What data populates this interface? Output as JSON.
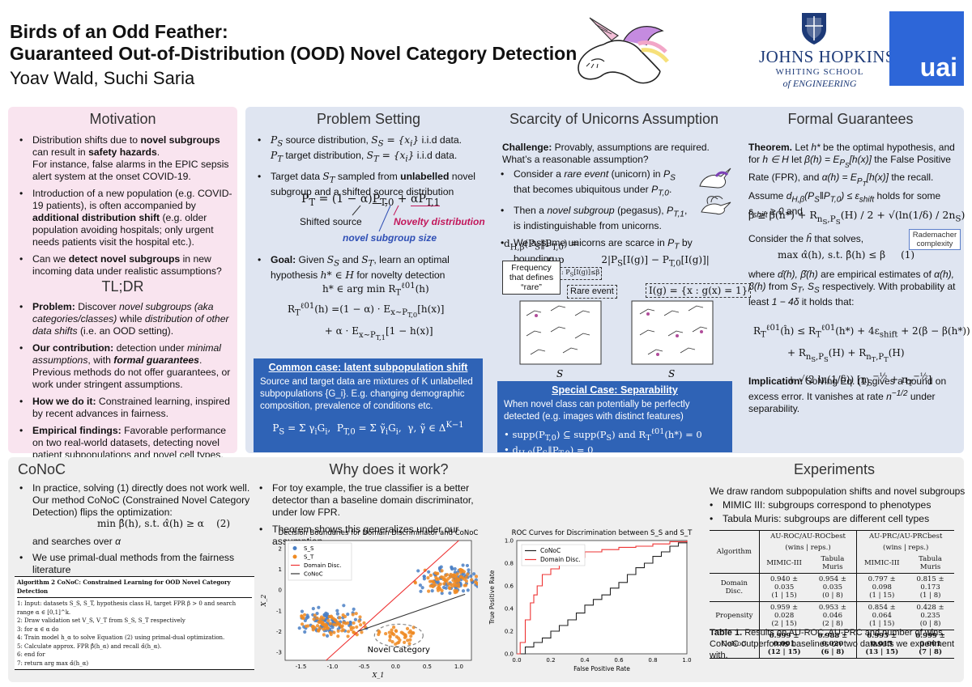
{
  "header": {
    "title_line1": "Birds of an Odd Feather:",
    "title_line2": "Guaranteed Out-of-Distribution (OOD) Novel Category Detection",
    "authors": "Yoav Wald, Suchi Saria",
    "jhu_name": "JOHNS HOPKINS",
    "jhu_school1": "WHITING SCHOOL",
    "jhu_school2": "of ENGINEERING",
    "uai": "uai"
  },
  "motivation": {
    "title": "Motivation",
    "b1a": "Distribution shifts due to ",
    "b1b": "novel subgroups",
    "b1c": " can result in ",
    "b1d": "safety hazards",
    "b1e": ".",
    "b1f": "For instance, false alarms in the EPIC sepsis alert system at the onset COVID-19.",
    "b2a": "Introduction of a new population (e.g. COVID-19 patients), is often accompanied by ",
    "b2b": "additional distribution shift",
    "b2c": " (e.g. older population avoiding hospitals; only urgent needs patients visit the hospital etc.).",
    "b3a": "Can we ",
    "b3b": "detect novel subgroups",
    "b3c": " in new incoming data under realistic assumptions?"
  },
  "tldr": {
    "title": "TL;DR",
    "p_h": "Problem:",
    "p_t1": " Discover ",
    "p_t2": "novel subgroups (aka categories/classes)",
    "p_t3": " while ",
    "p_t4": "distribution of other data shifts",
    "p_t5": " (i.e. an OOD setting).",
    "c_h": "Our contribution:",
    "c_t1": " detection under ",
    "c_t2": "minimal assumptions",
    "c_t3": ", with ",
    "c_t4": "formal guarantees",
    "c_t5": ". Previous methods do not offer guarantees, or work under stringent assumptions.",
    "h_h": "How we do it:",
    "h_t": " Constrained learning, inspired by recent advances in fairness.",
    "e_h": "Empirical findings:",
    "e_t": " Favorable performance on two real-world datasets, detecting novel patient subpopulations and novel cell types."
  },
  "problem": {
    "title": "Problem Setting",
    "b1a": "source distribution, ",
    "b1b": " i.i.d data.",
    "b1c": "target distribution, ",
    "b1d": " i.i.d data.",
    "b2a": "Target data ",
    "b2b": " sampled from ",
    "b2c": "unlabelled",
    "b2d": " novel subgroup and a shifted source distribution",
    "shifted": "Shifted source",
    "novelty": "Novelty distribution",
    "size": "novel subgroup size",
    "goal_a": "Goal:",
    "goal_b": " Given ",
    "goal_c": " and ",
    "goal_d": ", learn an optimal hypothesis ",
    "goal_e": " for novelty detection",
    "box_title": "Common case: latent subpopulation shift",
    "box_text": "Source and target data are mixtures of K unlabelled subpopulations {G_i}. E.g. changing demographic composition, prevalence of conditions etc."
  },
  "scarcity": {
    "title": "Scarcity of Unicorns Assumption",
    "challenge_h": "Challenge:",
    "challenge_t": " Provably, assumptions are required. What’s a reasonable assumption?",
    "b1a": "Consider a ",
    "b1b": "rare event",
    "b1c": " (unicorn) in ",
    "b1d": " that becomes ubiquitous under ",
    "b2a": "Then a ",
    "b2b": "novel subgroup",
    "b2c": " (pegasus), ",
    "b2d": ", is indistinguishable from unicorns.",
    "b3": "We assume unicorns are scarce in ",
    "b3b": " by bounding",
    "freq": "Frequency that defines “rare”",
    "rare": "Rare event",
    "box_title": "Special Case: Separability",
    "box_text": "When novel class can potentially be perfectly detected (e.g. images with distinct features)"
  },
  "formal": {
    "title": "Formal Guarantees",
    "th_h": "Theorem.",
    "th1": " Let ",
    "th2": " be the optimal hypothesis, and for ",
    "th3": " let ",
    "th4": " the False Positive Rate (FPR), and ",
    "th5": " the recall. Assume ",
    "th6": " holds for some ",
    "th7": " and",
    "rademacher": "Rademacher complexity",
    "consider": "Consider the ",
    "consider2": " that solves,",
    "where": "where ",
    "where2": " are empirical estimates of ",
    "where3": " from ",
    "where4": " respectively. With probability at least ",
    "where5": " it holds that:",
    "imp_h": "Implication:",
    "imp_t": " Solving Eq. (1) gives a bound on excess error. It vanishes at rate ",
    "imp_t2": " under separability."
  },
  "conoc": {
    "title": "CoNoC",
    "b1": "In practice, solving (1) directly does not work well. Our method CoNoC (Constrained Novel Category Detection) flips the optimization:",
    "b1b": "and searches over ",
    "b2": "We use primal-dual methods from the fairness literature",
    "algo_title": "Algorithm 2 CoNoC: Constrained Learning for OOD Novel Category Detection",
    "a1": "1:  Input: datasets S_S, S_T, hypothesis class H, target FPR β > 0 and search range α ∈ [0,1]^k.",
    "a2": "2:  Draw validation set V_S, V_T from S_S, S_T respectively",
    "a3": "3:  for α ∈ α do",
    "a4": "4:      Train model h_α to solve Equation (2) using primal-dual optimization.",
    "a5": "5:      Calculate approx. FPR β̂(h_α) and recall α̂(h_α).",
    "a6": "6:  end for",
    "a7": "7:  return arg max α̂(h_α)"
  },
  "why": {
    "title": "Why does it work?",
    "b1": "For toy example, the true classifier is a better detector than a baseline domain discriminator, under low FPR.",
    "b2": "Theorem shows this generalizes under our assumption"
  },
  "experiments": {
    "title": "Experiments",
    "intro": "We draw random subpopulation shifts and novel subgroups",
    "b1": "MIMIC III: subgroups correspond to phenotypes",
    "b2": "Tabula Muris: subgroups are different cell types",
    "caption_h": "Table 1.",
    "caption": " Results on AU-ROC, AU-PRC and number of wins. CoNoC outperforms baselines on two datasets we experiment with.",
    "table": {
      "h_algo": "Algorithm",
      "h_roc": "AU-ROC/AU-ROCbest",
      "h_prc": "AU-PRC/AU-PRCbest",
      "h_wins": "(wins | reps.)",
      "h_m": "MIMIC-III",
      "h_t": "Tabula Muris",
      "rows": [
        {
          "name": "Domain Disc.",
          "c1": "0.940 ± 0.035",
          "w1": "(1 | 15)",
          "c2": "0.954 ± 0.035",
          "w2": "(0 | 8)",
          "c3": "0.797 ± 0.098",
          "w3": "(1 | 15)",
          "c4": "0.815 ± 0.173",
          "w4": "(1 | 8)"
        },
        {
          "name": "Propensity",
          "c1": "0.959 ± 0.028",
          "w1": "(2 | 15)",
          "c2": "0.953 ± 0.046",
          "w2": "(2 | 8)",
          "c3": "0.854 ± 0.064",
          "w3": "(1 | 15)",
          "c4": "0.428 ± 0.235",
          "w4": "(0 | 8)"
        },
        {
          "name": "CoNoC",
          "c1": "0.999 ± 0.001",
          "w1": "(12 | 15)",
          "c2": "0.988 ± 0.020",
          "w2": "(6 | 8)",
          "c3": "0.995 ± 0.015",
          "w3": "(13 | 15)",
          "c4": "0.999 ± 0.001",
          "w4": "(7 | 8)"
        }
      ]
    }
  },
  "chart_data": [
    {
      "type": "scatter",
      "title": "Decision Boundaries for Domain Discriminator and CoNoC",
      "xlabel": "X_1",
      "ylabel": "X_2",
      "xlim": [
        -1.75,
        1.2
      ],
      "ylim": [
        -3.4,
        2.4
      ],
      "xticks": [
        "-1.5",
        "-1.0",
        "-0.5",
        "0.0",
        "0.5",
        "1.0"
      ],
      "yticks": [
        "2",
        "1",
        "0",
        "-1",
        "-2",
        "-3"
      ],
      "legend": [
        "S_S",
        "S_T",
        "Domain Disc.",
        "CoNoC"
      ],
      "annotation": "Novel Category",
      "series": [
        {
          "name": "S_S",
          "cluster_centers": [
            [
              -1.0,
              -1.5
            ],
            [
              0.9,
              0.5
            ]
          ]
        },
        {
          "name": "S_T",
          "cluster_centers": [
            [
              -1.0,
              -1.6
            ],
            [
              0.9,
              0.45
            ],
            [
              0.05,
              -2.2
            ]
          ]
        }
      ],
      "lines": [
        {
          "name": "Domain Disc.",
          "x": [
            -1.1,
            1.0
          ],
          "y": [
            -3.4,
            2.4
          ]
        },
        {
          "name": "CoNoC",
          "x": [
            -0.6,
            1.1
          ],
          "y": [
            -2.0,
            -0.2
          ]
        }
      ]
    },
    {
      "type": "line",
      "title": "ROC Curves for Discrimination between S_S and S_T",
      "xlabel": "False Positive Rate",
      "ylabel": "True Positive Rate",
      "xlim": [
        0,
        1
      ],
      "ylim": [
        0,
        1
      ],
      "xticks": [
        "0.0",
        "0.2",
        "0.4",
        "0.6",
        "0.8",
        "1.0"
      ],
      "yticks": [
        "0.0",
        "0.2",
        "0.4",
        "0.6",
        "0.8",
        "1.0"
      ],
      "series": [
        {
          "name": "CoNoC",
          "x": [
            0,
            0.05,
            0.1,
            0.15,
            0.2,
            0.25,
            0.3,
            0.35,
            0.4,
            0.45,
            0.5,
            0.55,
            0.6,
            0.65,
            0.7,
            0.75,
            0.8,
            0.85,
            0.9,
            0.95,
            1.0
          ],
          "y": [
            0,
            0.06,
            0.1,
            0.14,
            0.2,
            0.25,
            0.3,
            0.36,
            0.43,
            0.48,
            0.52,
            0.58,
            0.63,
            0.7,
            0.76,
            0.8,
            0.86,
            0.9,
            0.95,
            0.98,
            1.0
          ]
        },
        {
          "name": "Domain Disc.",
          "x": [
            0,
            0.02,
            0.05,
            0.08,
            0.1,
            0.12,
            0.15,
            0.2,
            0.25,
            0.3,
            0.35,
            0.4,
            0.5,
            0.6,
            0.7,
            0.8,
            0.9,
            1.0
          ],
          "y": [
            0,
            0.1,
            0.3,
            0.45,
            0.52,
            0.6,
            0.7,
            0.75,
            0.8,
            0.83,
            0.85,
            0.9,
            0.92,
            0.94,
            0.95,
            0.97,
            0.99,
            1.0
          ]
        }
      ]
    }
  ]
}
